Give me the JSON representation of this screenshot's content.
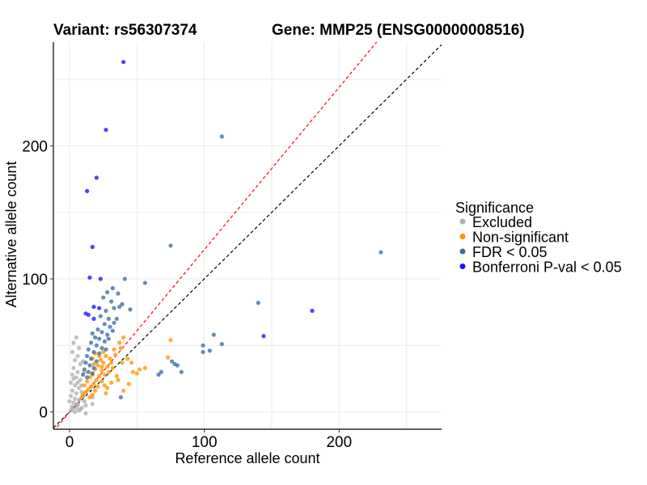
{
  "chart_data": {
    "type": "scatter",
    "title_left": "Variant: rs56307374",
    "title_right": "Gene: MMP25 (ENSG00000008516)",
    "xlabel": "Reference allele count",
    "ylabel": "Alternative allele count",
    "xlim": [
      -12,
      276
    ],
    "ylim": [
      -13,
      278
    ],
    "xticks": [
      0,
      100,
      200
    ],
    "yticks": [
      0,
      100,
      200
    ],
    "xticks_minor": [
      50,
      150,
      250
    ],
    "yticks_minor": [
      50,
      150,
      250
    ],
    "grid": true,
    "reference_lines": [
      {
        "name": "identity",
        "slope": 1.0,
        "intercept": 0,
        "color": "#000000",
        "style": "dashed"
      },
      {
        "name": "expected-ratio",
        "slope": 1.22,
        "intercept": 0,
        "color": "#ff0000",
        "style": "dashed"
      }
    ],
    "legend": {
      "title": "Significance",
      "position": "right",
      "entries": [
        {
          "label": "Excluded",
          "color": "#b0b0b0"
        },
        {
          "label": "Non-significant",
          "color": "#ff9500"
        },
        {
          "label": "FDR < 0.05",
          "color": "#3a6ea5"
        },
        {
          "label": "Bonferroni P-val < 0.05",
          "color": "#1414ff"
        }
      ]
    },
    "series": [
      {
        "name": "Bonferroni P-val < 0.05",
        "color": "#1414ff",
        "points": [
          [
            40,
            263
          ],
          [
            27,
            212
          ],
          [
            20,
            176
          ],
          [
            13,
            166
          ],
          [
            17,
            124
          ],
          [
            15,
            101
          ],
          [
            23,
            100
          ],
          [
            18,
            79
          ],
          [
            22,
            78
          ],
          [
            14,
            73
          ],
          [
            12,
            74
          ],
          [
            18,
            70
          ],
          [
            144,
            57
          ],
          [
            180,
            76
          ]
        ]
      },
      {
        "name": "FDR < 0.05",
        "color": "#3a6ea5",
        "points": [
          [
            113,
            207
          ],
          [
            75,
            125
          ],
          [
            231,
            120
          ],
          [
            56,
            97
          ],
          [
            41,
            100
          ],
          [
            32,
            93
          ],
          [
            36,
            89
          ],
          [
            28,
            90
          ],
          [
            140,
            82
          ],
          [
            25,
            86
          ],
          [
            31,
            83
          ],
          [
            37,
            79
          ],
          [
            45,
            77
          ],
          [
            39,
            81
          ],
          [
            33,
            78
          ],
          [
            27,
            76
          ],
          [
            23,
            72
          ],
          [
            29,
            70
          ],
          [
            35,
            70
          ],
          [
            26,
            66
          ],
          [
            30,
            64
          ],
          [
            33,
            67
          ],
          [
            21,
            62
          ],
          [
            24,
            60
          ],
          [
            28,
            58
          ],
          [
            32,
            61
          ],
          [
            17,
            59
          ],
          [
            19,
            56
          ],
          [
            22,
            55
          ],
          [
            26,
            53
          ],
          [
            29,
            55
          ],
          [
            16,
            52
          ],
          [
            20,
            50
          ],
          [
            24,
            48
          ],
          [
            14,
            47
          ],
          [
            18,
            45
          ],
          [
            22,
            44
          ],
          [
            27,
            47
          ],
          [
            13,
            42
          ],
          [
            16,
            40
          ],
          [
            20,
            38
          ],
          [
            12,
            37
          ],
          [
            15,
            35
          ],
          [
            18,
            33
          ],
          [
            11,
            32
          ],
          [
            14,
            30
          ],
          [
            17,
            29
          ],
          [
            10,
            28
          ],
          [
            13,
            26
          ],
          [
            107,
            58
          ],
          [
            113,
            51
          ],
          [
            99,
            50
          ],
          [
            104,
            46
          ],
          [
            99,
            45
          ],
          [
            80,
            35
          ],
          [
            76,
            38
          ],
          [
            78,
            36
          ],
          [
            83,
            30
          ],
          [
            66,
            28
          ],
          [
            68,
            30
          ],
          [
            38,
            11
          ]
        ]
      },
      {
        "name": "Non-significant",
        "color": "#ff9500",
        "points": [
          [
            75,
            54
          ],
          [
            73,
            41
          ],
          [
            56,
            33
          ],
          [
            47,
            30
          ],
          [
            38,
            48
          ],
          [
            33,
            47
          ],
          [
            37,
            52
          ],
          [
            40,
            56
          ],
          [
            34,
            43
          ],
          [
            30,
            40
          ],
          [
            27,
            42
          ],
          [
            25,
            45
          ],
          [
            31,
            37
          ],
          [
            23,
            39
          ],
          [
            21,
            35
          ],
          [
            28,
            34
          ],
          [
            19,
            32
          ],
          [
            24,
            31
          ],
          [
            17,
            28
          ],
          [
            22,
            27
          ],
          [
            15,
            26
          ],
          [
            20,
            24
          ],
          [
            13,
            23
          ],
          [
            18,
            21
          ],
          [
            11,
            20
          ],
          [
            16,
            19
          ],
          [
            14,
            17
          ],
          [
            12,
            15
          ],
          [
            10,
            13
          ],
          [
            9,
            11
          ],
          [
            35,
            27
          ],
          [
            36,
            24
          ],
          [
            31,
            22
          ],
          [
            28,
            18
          ],
          [
            27,
            14
          ],
          [
            40,
            16
          ],
          [
            44,
            21
          ],
          [
            50,
            29
          ],
          [
            52,
            32
          ],
          [
            46,
            37
          ],
          [
            43,
            40
          ],
          [
            39,
            37
          ],
          [
            26,
            28
          ],
          [
            29,
            30
          ],
          [
            32,
            33
          ],
          [
            24,
            23
          ],
          [
            21,
            19
          ],
          [
            19,
            16
          ],
          [
            17,
            13
          ],
          [
            15,
            11
          ],
          [
            25,
            37
          ],
          [
            22,
            42
          ],
          [
            19,
            44
          ],
          [
            17,
            40
          ],
          [
            18,
            36
          ],
          [
            24,
            34
          ],
          [
            26,
            20
          ]
        ]
      },
      {
        "name": "Excluded",
        "color": "#b0b0b0",
        "points": [
          [
            5,
            56
          ],
          [
            3,
            52
          ],
          [
            7,
            48
          ],
          [
            2,
            45
          ],
          [
            6,
            42
          ],
          [
            4,
            39
          ],
          [
            8,
            36
          ],
          [
            3,
            33
          ],
          [
            6,
            30
          ],
          [
            2,
            28
          ],
          [
            5,
            26
          ],
          [
            8,
            24
          ],
          [
            1,
            22
          ],
          [
            4,
            20
          ],
          [
            7,
            18
          ],
          [
            2,
            16
          ],
          [
            5,
            14
          ],
          [
            9,
            15
          ],
          [
            1,
            12
          ],
          [
            4,
            10
          ],
          [
            7,
            9
          ],
          [
            3,
            7
          ],
          [
            6,
            6
          ],
          [
            2,
            4
          ],
          [
            5,
            3
          ],
          [
            8,
            2
          ],
          [
            1,
            1
          ],
          [
            4,
            0
          ],
          [
            6,
            5
          ],
          [
            10,
            12
          ],
          [
            11,
            8
          ],
          [
            12,
            5
          ],
          [
            9,
            3
          ],
          [
            3,
            25
          ],
          [
            6,
            22
          ],
          [
            9,
            20
          ],
          [
            10,
            38
          ],
          [
            11,
            30
          ],
          [
            0,
            8
          ],
          [
            2,
            2
          ],
          [
            17,
            11
          ],
          [
            17,
            6
          ],
          [
            7,
            1
          ],
          [
            12,
            -1
          ]
        ]
      }
    ]
  }
}
